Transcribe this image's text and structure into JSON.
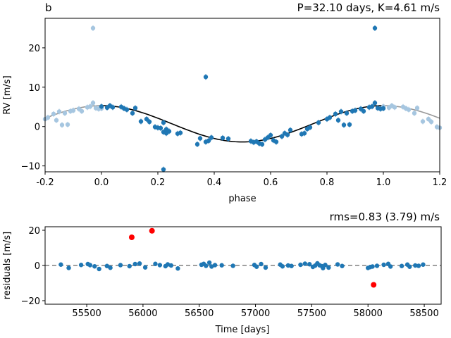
{
  "colors": {
    "primary": "#1f77b4",
    "faded": "#a6c6e0",
    "outlier": "#ff0000",
    "model_in": "#000000",
    "model_out": "#999999",
    "zero_line": "#808080"
  },
  "chart_data": [
    {
      "type": "scatter",
      "panel_letter": "b",
      "title": "P=32.10 days, K=4.61 m/s",
      "xlabel": "phase",
      "ylabel": "RV [m/s]",
      "xlim": [
        -0.2,
        1.2
      ],
      "ylim": [
        -11.5,
        27.5
      ],
      "xticks": [
        "-0.2",
        "0.0",
        "0.2",
        "0.4",
        "0.6",
        "0.8",
        "1.0",
        "1.2"
      ],
      "yticks": [
        "20",
        "10",
        "0",
        "−10"
      ],
      "model": {
        "amplitude": 4.61,
        "offset": 0.7,
        "peak_phase": 0.0
      },
      "points": [
        [
          0.0,
          5.1
        ],
        [
          0.02,
          4.8
        ],
        [
          0.03,
          5.3
        ],
        [
          0.04,
          4.9
        ],
        [
          0.07,
          5.0
        ],
        [
          0.08,
          4.6
        ],
        [
          0.09,
          4.3
        ],
        [
          0.11,
          3.4
        ],
        [
          0.12,
          4.7
        ],
        [
          0.14,
          1.3
        ],
        [
          0.16,
          1.9
        ],
        [
          0.17,
          1.2
        ],
        [
          0.19,
          -0.1
        ],
        [
          0.2,
          -0.3
        ],
        [
          0.21,
          -0.4
        ],
        [
          0.22,
          1.0
        ],
        [
          0.22,
          -1.4
        ],
        [
          0.23,
          -1.7
        ],
        [
          0.23,
          -0.7
        ],
        [
          0.24,
          -1.2
        ],
        [
          0.22,
          -10.9
        ],
        [
          0.27,
          -1.8
        ],
        [
          0.28,
          -1.6
        ],
        [
          0.34,
          -4.5
        ],
        [
          0.35,
          -3.0
        ],
        [
          0.37,
          -3.9
        ],
        [
          0.38,
          -3.6
        ],
        [
          0.39,
          -2.8
        ],
        [
          0.37,
          12.6
        ],
        [
          0.43,
          -2.9
        ],
        [
          0.45,
          -3.1
        ],
        [
          0.53,
          -3.7
        ],
        [
          0.54,
          -4.0
        ],
        [
          0.55,
          -3.8
        ],
        [
          0.56,
          -4.3
        ],
        [
          0.57,
          -4.5
        ],
        [
          0.58,
          -3.3
        ],
        [
          0.59,
          -2.8
        ],
        [
          0.6,
          -2.2
        ],
        [
          0.61,
          -3.5
        ],
        [
          0.62,
          -3.9
        ],
        [
          0.64,
          -2.5
        ],
        [
          0.65,
          -1.7
        ],
        [
          0.66,
          -2.1
        ],
        [
          0.67,
          -0.9
        ],
        [
          0.71,
          -1.9
        ],
        [
          0.72,
          -1.7
        ],
        [
          0.73,
          -0.6
        ],
        [
          0.74,
          -0.2
        ],
        [
          0.77,
          1.0
        ],
        [
          0.8,
          1.9
        ],
        [
          0.81,
          2.3
        ],
        [
          0.83,
          3.2
        ],
        [
          0.84,
          1.6
        ],
        [
          0.85,
          3.8
        ],
        [
          0.86,
          0.4
        ],
        [
          0.87,
          3.4
        ],
        [
          0.88,
          0.5
        ],
        [
          0.89,
          3.9
        ],
        [
          0.9,
          4.1
        ],
        [
          0.92,
          4.5
        ],
        [
          0.93,
          3.9
        ],
        [
          0.95,
          4.9
        ],
        [
          0.96,
          5.1
        ],
        [
          0.97,
          6.0
        ],
        [
          0.98,
          4.7
        ],
        [
          0.99,
          4.5
        ],
        [
          1.0,
          4.6
        ],
        [
          0.97,
          25.0
        ]
      ]
    },
    {
      "type": "scatter",
      "title": "rms=0.83 (3.79) m/s",
      "xlabel": "Time [days]",
      "ylabel": "residuals [m/s]",
      "xlim": [
        55130,
        58650
      ],
      "ylim": [
        -22,
        22
      ],
      "xticks": [
        "55500",
        "56000",
        "56500",
        "57000",
        "57500",
        "58000",
        "58500"
      ],
      "yticks": [
        "20",
        "0",
        "−20"
      ],
      "reference_line": 0,
      "points": [
        [
          55270,
          0.5
        ],
        [
          55340,
          -1.4
        ],
        [
          55450,
          0.3
        ],
        [
          55510,
          0.8
        ],
        [
          55530,
          0.2
        ],
        [
          55570,
          -0.5
        ],
        [
          55610,
          -2.0
        ],
        [
          55680,
          -0.3
        ],
        [
          55710,
          -1.3
        ],
        [
          55800,
          0.2
        ],
        [
          55880,
          -0.4
        ],
        [
          55930,
          0.8
        ],
        [
          55970,
          1.1
        ],
        [
          56020,
          -1.1
        ],
        [
          56110,
          0.9
        ],
        [
          56150,
          0.2
        ],
        [
          56200,
          -0.4
        ],
        [
          56220,
          0.6
        ],
        [
          56250,
          0.0
        ],
        [
          56310,
          -1.7
        ],
        [
          56520,
          0.4
        ],
        [
          56540,
          0.9
        ],
        [
          56560,
          -0.2
        ],
        [
          56590,
          1.6
        ],
        [
          56610,
          -0.6
        ],
        [
          56640,
          0.2
        ],
        [
          56700,
          0.1
        ],
        [
          56800,
          -0.2
        ],
        [
          56990,
          0.3
        ],
        [
          57010,
          -0.7
        ],
        [
          57050,
          0.8
        ],
        [
          57090,
          -1.2
        ],
        [
          57220,
          0.5
        ],
        [
          57240,
          -0.5
        ],
        [
          57290,
          0.0
        ],
        [
          57320,
          -0.3
        ],
        [
          57400,
          0.4
        ],
        [
          57440,
          1.0
        ],
        [
          57480,
          0.7
        ],
        [
          57510,
          -0.8
        ],
        [
          57530,
          -0.1
        ],
        [
          57550,
          1.2
        ],
        [
          57570,
          0.1
        ],
        [
          57590,
          -0.4
        ],
        [
          57600,
          -1.5
        ],
        [
          57620,
          0.3
        ],
        [
          57650,
          -1.2
        ],
        [
          57730,
          0.6
        ],
        [
          57770,
          -0.3
        ],
        [
          58000,
          -1.4
        ],
        [
          58020,
          -0.9
        ],
        [
          58040,
          -0.6
        ],
        [
          58080,
          -0.2
        ],
        [
          58140,
          0.4
        ],
        [
          58180,
          0.9
        ],
        [
          58200,
          -0.6
        ],
        [
          58300,
          -0.3
        ],
        [
          58350,
          0.5
        ],
        [
          58370,
          -0.7
        ],
        [
          58420,
          0.0
        ],
        [
          58450,
          -0.2
        ],
        [
          58490,
          0.5
        ]
      ],
      "outliers": [
        [
          55900,
          16.0
        ],
        [
          56080,
          19.7
        ],
        [
          58050,
          -11.0
        ]
      ]
    }
  ]
}
